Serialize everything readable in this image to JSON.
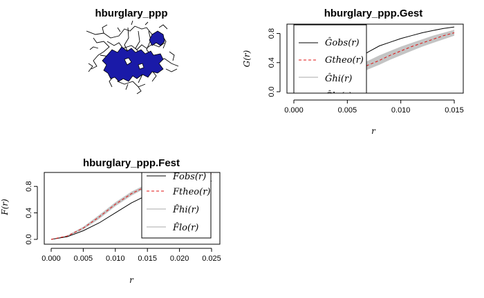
{
  "map": {
    "title": "hburglary_ppp",
    "fill_color": "#1a1aa8"
  },
  "chart_data": [
    {
      "id": "gest",
      "type": "line",
      "title": "hburglary_ppp.Gest",
      "xlabel": "r",
      "ylabel": "G(r)",
      "xlim": [
        0,
        0.015
      ],
      "ylim": [
        0,
        0.9
      ],
      "xticks": [
        "0.000",
        "0.005",
        "0.010",
        "0.015"
      ],
      "yticks": [
        "0.0",
        "0.4",
        "0.8"
      ],
      "x": [
        0,
        0.001,
        0.002,
        0.003,
        0.004,
        0.005,
        0.006,
        0.007,
        0.008,
        0.009,
        0.01,
        0.011,
        0.012,
        0.013,
        0.014,
        0.015
      ],
      "series": [
        {
          "name": "Ĝobs(r)",
          "color": "#000000",
          "dash": "solid",
          "values": [
            0.12,
            0.13,
            0.17,
            0.22,
            0.28,
            0.37,
            0.46,
            0.55,
            0.63,
            0.68,
            0.73,
            0.77,
            0.81,
            0.84,
            0.87,
            0.89
          ]
        },
        {
          "name": "Gtheo(r)",
          "color": "#e01010",
          "dash": "dashed",
          "values": [
            0.0,
            0.02,
            0.06,
            0.11,
            0.17,
            0.23,
            0.3,
            0.37,
            0.43,
            0.5,
            0.56,
            0.62,
            0.67,
            0.72,
            0.77,
            0.81
          ]
        }
      ],
      "envelope": {
        "hi": [
          0.02,
          0.05,
          0.1,
          0.16,
          0.22,
          0.29,
          0.36,
          0.43,
          0.5,
          0.56,
          0.62,
          0.67,
          0.72,
          0.77,
          0.81,
          0.85
        ],
        "lo": [
          0.0,
          0.0,
          0.02,
          0.06,
          0.11,
          0.17,
          0.24,
          0.31,
          0.37,
          0.44,
          0.5,
          0.56,
          0.62,
          0.67,
          0.72,
          0.77
        ]
      },
      "legend": {
        "position": "top-left",
        "entries": [
          {
            "label": "Ĝobs(r)",
            "color": "#000000",
            "dash": "solid"
          },
          {
            "label": "Gtheo(r)",
            "color": "#e01010",
            "dash": "dashed"
          },
          {
            "label": "Ĝhi(r)",
            "color": "#aaaaaa",
            "dash": "solid"
          },
          {
            "label": "Ĝlo(r)",
            "color": "#aaaaaa",
            "dash": "solid"
          }
        ]
      }
    },
    {
      "id": "fest",
      "type": "line",
      "title": "hburglary_ppp.Fest",
      "xlabel": "r",
      "ylabel": "F(r)",
      "xlim": [
        0,
        0.025
      ],
      "ylim": [
        0,
        1.0
      ],
      "xticks": [
        "0.000",
        "0.005",
        "0.010",
        "0.015",
        "0.020",
        "0.025"
      ],
      "yticks": [
        "0.0",
        "0.4",
        "0.8"
      ],
      "x": [
        0,
        0.0025,
        0.005,
        0.0075,
        0.01,
        0.0125,
        0.015,
        0.0175,
        0.02,
        0.0225,
        0.025
      ],
      "series": [
        {
          "name": "F̂obs(r)",
          "color": "#000000",
          "dash": "solid",
          "values": [
            0.0,
            0.04,
            0.13,
            0.25,
            0.4,
            0.55,
            0.67,
            0.75,
            0.81,
            0.85,
            0.88
          ]
        },
        {
          "name": "Ftheo(r)",
          "color": "#e01010",
          "dash": "dashed",
          "values": [
            0.0,
            0.05,
            0.17,
            0.34,
            0.53,
            0.69,
            0.81,
            0.9,
            0.95,
            0.97,
            0.99
          ]
        }
      ],
      "envelope": {
        "hi": [
          0.0,
          0.06,
          0.19,
          0.37,
          0.56,
          0.72,
          0.84,
          0.92,
          0.96,
          0.98,
          0.99
        ],
        "lo": [
          0.0,
          0.04,
          0.15,
          0.31,
          0.5,
          0.66,
          0.79,
          0.88,
          0.93,
          0.96,
          0.98
        ]
      },
      "legend": {
        "position": "top-right",
        "entries": [
          {
            "label": "F̂obs(r)",
            "color": "#000000",
            "dash": "solid"
          },
          {
            "label": "Ftheo(r)",
            "color": "#e01010",
            "dash": "dashed"
          },
          {
            "label": "F̂hi(r)",
            "color": "#aaaaaa",
            "dash": "solid"
          },
          {
            "label": "F̂lo(r)",
            "color": "#aaaaaa",
            "dash": "solid"
          }
        ]
      }
    }
  ]
}
